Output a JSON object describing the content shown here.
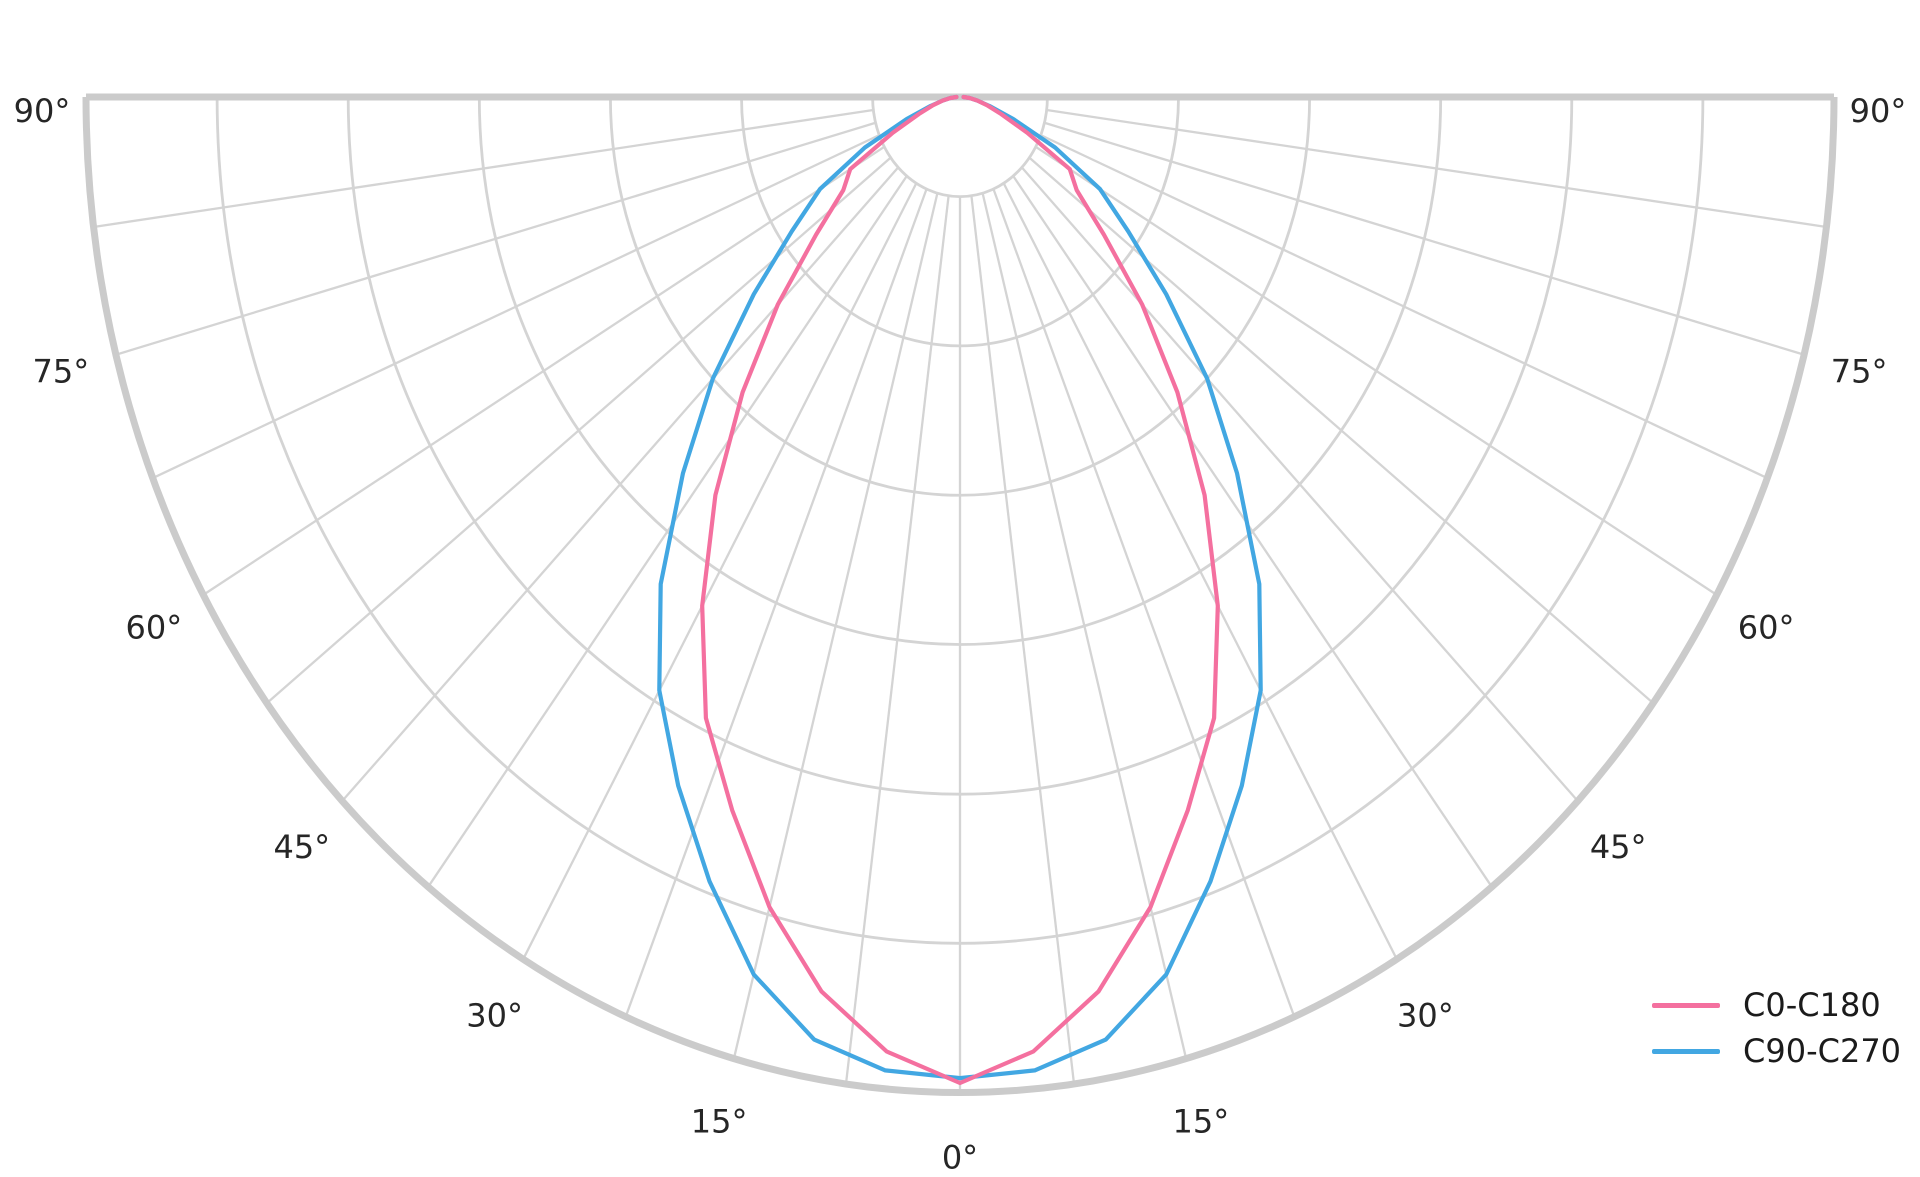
{
  "chart_data": {
    "type": "line",
    "polar": true,
    "title": "",
    "description": "Photometric luminous intensity distribution polar diagram; 0 degrees points to nadir (bottom), angles increase to 90 degrees at horizontal on both sides; no radial tick value labels are shown",
    "angle_ticks": [
      {
        "deg": -90,
        "label": "90°"
      },
      {
        "deg": -75,
        "label": "75°"
      },
      {
        "deg": -60,
        "label": "60°"
      },
      {
        "deg": -45,
        "label": "45°"
      },
      {
        "deg": -30,
        "label": "30°"
      },
      {
        "deg": -15,
        "label": "15°"
      },
      {
        "deg": 0,
        "label": "0°"
      },
      {
        "deg": 15,
        "label": "15°"
      },
      {
        "deg": 30,
        "label": "30°"
      },
      {
        "deg": 45,
        "label": "45°"
      },
      {
        "deg": 60,
        "label": "60°"
      },
      {
        "deg": 75,
        "label": "75°"
      },
      {
        "deg": 90,
        "label": "90°"
      }
    ],
    "spoke_step_deg": 7.5,
    "ring_fractions": [
      0.1,
      0.25,
      0.4,
      0.55,
      0.7,
      0.85,
      1.0
    ],
    "radial_tick_labels_visible": false,
    "grid": true,
    "legend_position": "lower right",
    "theta_deg": [
      0,
      5,
      10,
      15,
      20,
      25,
      30,
      35,
      40,
      45,
      50,
      55,
      60,
      65,
      70,
      75,
      80,
      85,
      90
    ],
    "series": [
      {
        "name": "C0-C180",
        "color": "#f4709f",
        "r_normalized": [
          0.99,
          0.962,
          0.912,
          0.842,
          0.762,
          0.688,
          0.59,
          0.488,
          0.387,
          0.295,
          0.215,
          0.163,
          0.145,
          0.085,
          0.05,
          0.032,
          0.02,
          0.011,
          0.004
        ]
      },
      {
        "name": "C90-C270",
        "color": "#42a7e2",
        "r_normalized": [
          0.985,
          0.981,
          0.961,
          0.912,
          0.838,
          0.763,
          0.688,
          0.597,
          0.493,
          0.4,
          0.308,
          0.235,
          0.185,
          0.12,
          0.065,
          0.035,
          0.02,
          0.011,
          0.004
        ]
      }
    ]
  },
  "legend": {
    "items": [
      {
        "label": "C0-C180"
      },
      {
        "label": "C90-C270"
      }
    ]
  },
  "colors": {
    "background": "#ffffff",
    "grid_line": "#d4d4d4",
    "outer_boundary": "#cbcbcb",
    "tick_text": "#262626",
    "c0_c180": "#f4709f",
    "c90_c270": "#42a7e2"
  }
}
